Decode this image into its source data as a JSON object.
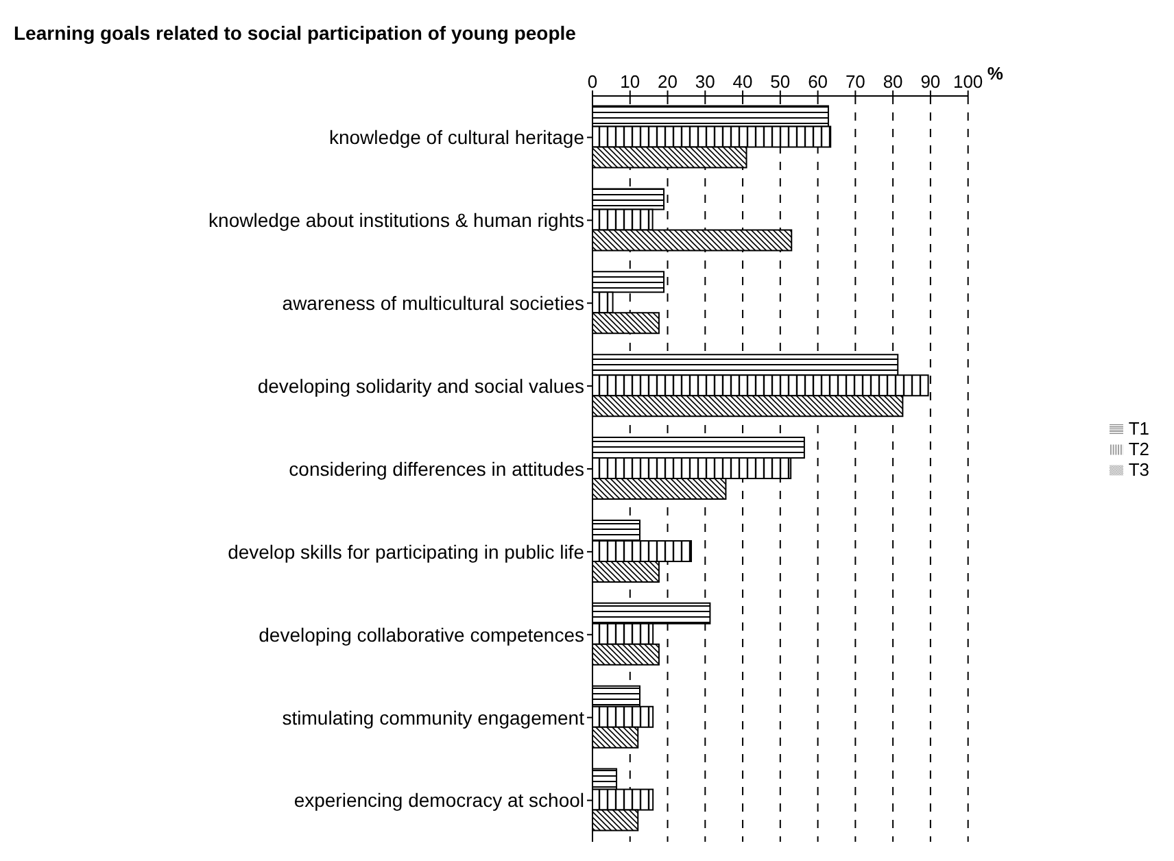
{
  "chart_data": {
    "type": "bar",
    "orientation": "horizontal",
    "title": "Learning goals related to social participation of young people",
    "xlabel": "%",
    "categories": [
      "knowledge of cultural heritage",
      "knowledge about institutions & human rights",
      "awareness of multicultural societies",
      "developing solidarity and social values",
      "considering differences in attitudes",
      "develop skills for participating in public life",
      "developing collaborative competences",
      "stimulating community engagement",
      "experiencing democracy at school"
    ],
    "series": [
      {
        "name": "T1",
        "color": "#000000",
        "values": [
          62.8,
          19,
          19,
          81.3,
          56.4,
          12.6,
          31.3,
          12.6,
          6.4
        ]
      },
      {
        "name": "T2",
        "color": "#000000",
        "values": [
          63.4,
          16,
          5.4,
          89.4,
          52.8,
          26.3,
          16.1,
          16.1,
          16.1
        ]
      },
      {
        "name": "T3",
        "color": "#000000",
        "values": [
          41,
          53,
          17.7,
          82.6,
          35.5,
          17.7,
          17.7,
          12.1,
          12.1
        ]
      }
    ],
    "xlim": [
      0,
      100
    ],
    "xticks": [
      0,
      10,
      20,
      30,
      40,
      50,
      60,
      70,
      80,
      90,
      100
    ],
    "grid": "x",
    "legend": "right"
  }
}
